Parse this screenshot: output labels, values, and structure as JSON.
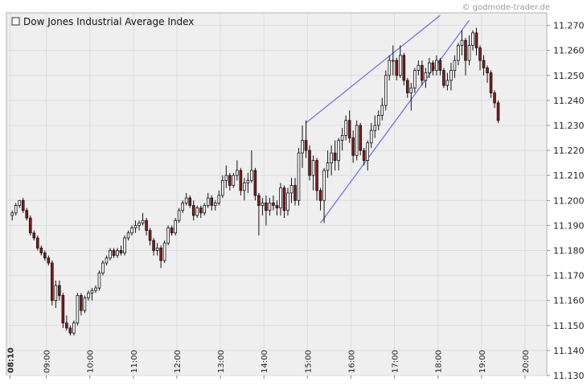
{
  "watermark": "© godmode-trader.de",
  "chart_data": {
    "type": "candlestick",
    "title": "Dow Jones Industrial Average Index",
    "ylim": [
      11130,
      11275
    ],
    "y_ticks": [
      "11.130",
      "11.140",
      "11.150",
      "11.160",
      "11.170",
      "11.180",
      "11.190",
      "11.200",
      "11.210",
      "11.220",
      "11.230",
      "11.240",
      "11.250",
      "11.260",
      "11.270"
    ],
    "y_tick_values": [
      11130,
      11140,
      11150,
      11160,
      11170,
      11180,
      11190,
      11200,
      11210,
      11220,
      11230,
      11240,
      11250,
      11260,
      11270
    ],
    "x_ticks": [
      "08:10",
      "09:00",
      "10:00",
      "11:00",
      "12:00",
      "13:00",
      "14:00",
      "15:00",
      "16:00",
      "17:00",
      "18:00",
      "19:00",
      "20:00"
    ],
    "x_tick_minutes": [
      490,
      540,
      600,
      660,
      720,
      780,
      840,
      900,
      960,
      1020,
      1080,
      1140,
      1200
    ],
    "x_range_minutes": [
      485,
      1230
    ],
    "bar_interval_minutes": 5,
    "colors": {
      "up": "#ffffff",
      "down": "#8b1a1a",
      "trendline": "#6a6aee",
      "grid": "#dcdcdc",
      "plot_bg": "#efefef"
    },
    "candles": [
      [
        11194,
        11196,
        11192,
        11195
      ],
      [
        11195,
        11199,
        11194,
        11198
      ],
      [
        11198,
        11200,
        11197,
        11200
      ],
      [
        11200,
        11201,
        11195,
        11196
      ],
      [
        11196,
        11197,
        11192,
        11193
      ],
      [
        11193,
        11194,
        11186,
        11187
      ],
      [
        11187,
        11188,
        11184,
        11185
      ],
      [
        11185,
        11186,
        11180,
        11181
      ],
      [
        11181,
        11182,
        11178,
        11179
      ],
      [
        11179,
        11180,
        11176,
        11177
      ],
      [
        11177,
        11178,
        11174,
        11175
      ],
      [
        11175,
        11176,
        11158,
        11160
      ],
      [
        11160,
        11168,
        11157,
        11166
      ],
      [
        11166,
        11168,
        11160,
        11162
      ],
      [
        11162,
        11163,
        11149,
        11151
      ],
      [
        11151,
        11154,
        11148,
        11149
      ],
      [
        11149,
        11150,
        11146,
        11147
      ],
      [
        11147,
        11152,
        11146,
        11151
      ],
      [
        11151,
        11163,
        11150,
        11162
      ],
      [
        11162,
        11163,
        11154,
        11156
      ],
      [
        11156,
        11162,
        11155,
        11161
      ],
      [
        11161,
        11164,
        11160,
        11163
      ],
      [
        11163,
        11165,
        11160,
        11164
      ],
      [
        11164,
        11166,
        11163,
        11165
      ],
      [
        11165,
        11172,
        11164,
        11171
      ],
      [
        11171,
        11176,
        11170,
        11175
      ],
      [
        11175,
        11178,
        11174,
        11177
      ],
      [
        11177,
        11181,
        11176,
        11180
      ],
      [
        11180,
        11181,
        11177,
        11178
      ],
      [
        11178,
        11181,
        11177,
        11180
      ],
      [
        11180,
        11182,
        11178,
        11179
      ],
      [
        11179,
        11186,
        11178,
        11185
      ],
      [
        11185,
        11188,
        11184,
        11187
      ],
      [
        11187,
        11190,
        11186,
        11189
      ],
      [
        11189,
        11192,
        11187,
        11190
      ],
      [
        11190,
        11192,
        11188,
        11191
      ],
      [
        11191,
        11195,
        11190,
        11192
      ],
      [
        11192,
        11193,
        11186,
        11188
      ],
      [
        11188,
        11189,
        11182,
        11184
      ],
      [
        11184,
        11185,
        11178,
        11180
      ],
      [
        11180,
        11183,
        11178,
        11181
      ],
      [
        11181,
        11182,
        11173,
        11176
      ],
      [
        11176,
        11184,
        11175,
        11183
      ],
      [
        11183,
        11190,
        11182,
        11189
      ],
      [
        11189,
        11190,
        11186,
        11187
      ],
      [
        11187,
        11193,
        11186,
        11192
      ],
      [
        11192,
        11197,
        11191,
        11196
      ],
      [
        11196,
        11200,
        11195,
        11199
      ],
      [
        11199,
        11203,
        11198,
        11201
      ],
      [
        11201,
        11202,
        11197,
        11198
      ],
      [
        11198,
        11200,
        11192,
        11194
      ],
      [
        11194,
        11198,
        11193,
        11197
      ],
      [
        11197,
        11198,
        11193,
        11195
      ],
      [
        11195,
        11199,
        11194,
        11198
      ],
      [
        11198,
        11203,
        11197,
        11201
      ],
      [
        11201,
        11202,
        11196,
        11198
      ],
      [
        11198,
        11200,
        11196,
        11199
      ],
      [
        11199,
        11204,
        11198,
        11202
      ],
      [
        11202,
        11210,
        11201,
        11208
      ],
      [
        11208,
        11214,
        11205,
        11210
      ],
      [
        11210,
        11211,
        11204,
        11206
      ],
      [
        11206,
        11211,
        11205,
        11210
      ],
      [
        11210,
        11216,
        11208,
        11212
      ],
      [
        11212,
        11213,
        11202,
        11204
      ],
      [
        11204,
        11209,
        11200,
        11207
      ],
      [
        11207,
        11211,
        11203,
        11208
      ],
      [
        11208,
        11220,
        11207,
        11212
      ],
      [
        11212,
        11213,
        11200,
        11202
      ],
      [
        11202,
        11203,
        11186,
        11198
      ],
      [
        11198,
        11201,
        11194,
        11199
      ],
      [
        11199,
        11202,
        11190,
        11196
      ],
      [
        11196,
        11201,
        11194,
        11199
      ],
      [
        11199,
        11202,
        11196,
        11198
      ],
      [
        11198,
        11200,
        11194,
        11197
      ],
      [
        11197,
        11207,
        11194,
        11205
      ],
      [
        11205,
        11206,
        11193,
        11196
      ],
      [
        11196,
        11205,
        11194,
        11203
      ],
      [
        11203,
        11209,
        11199,
        11206
      ],
      [
        11206,
        11209,
        11198,
        11200
      ],
      [
        11200,
        11221,
        11198,
        11219
      ],
      [
        11219,
        11230,
        11213,
        11224
      ],
      [
        11224,
        11232,
        11217,
        11220
      ],
      [
        11220,
        11222,
        11208,
        11210
      ],
      [
        11210,
        11218,
        11204,
        11216
      ],
      [
        11216,
        11217,
        11200,
        11204
      ],
      [
        11204,
        11205,
        11196,
        11200
      ],
      [
        11200,
        11213,
        11191,
        11212
      ],
      [
        11212,
        11220,
        11209,
        11215
      ],
      [
        11215,
        11222,
        11210,
        11219
      ],
      [
        11219,
        11224,
        11212,
        11216
      ],
      [
        11216,
        11225,
        11212,
        11224
      ],
      [
        11224,
        11229,
        11220,
        11226
      ],
      [
        11226,
        11234,
        11224,
        11232
      ],
      [
        11232,
        11236,
        11223,
        11225
      ],
      [
        11225,
        11228,
        11215,
        11218
      ],
      [
        11218,
        11232,
        11216,
        11230
      ],
      [
        11230,
        11231,
        11218,
        11220
      ],
      [
        11220,
        11221,
        11214,
        11216
      ],
      [
        11216,
        11224,
        11212,
        11223
      ],
      [
        11223,
        11231,
        11221,
        11228
      ],
      [
        11228,
        11234,
        11225,
        11230
      ],
      [
        11230,
        11236,
        11228,
        11234
      ],
      [
        11234,
        11241,
        11232,
        11238
      ],
      [
        11238,
        11252,
        11236,
        11250
      ],
      [
        11250,
        11258,
        11248,
        11256
      ],
      [
        11256,
        11262,
        11250,
        11256
      ],
      [
        11256,
        11257,
        11248,
        11250
      ],
      [
        11250,
        11262,
        11249,
        11258
      ],
      [
        11258,
        11259,
        11246,
        11248
      ],
      [
        11248,
        11249,
        11241,
        11243
      ],
      [
        11243,
        11247,
        11236,
        11245
      ],
      [
        11245,
        11253,
        11243,
        11252
      ],
      [
        11252,
        11256,
        11250,
        11254
      ],
      [
        11254,
        11256,
        11246,
        11248
      ],
      [
        11248,
        11253,
        11245,
        11251
      ],
      [
        11251,
        11257,
        11249,
        11255
      ],
      [
        11255,
        11256,
        11250,
        11252
      ],
      [
        11252,
        11258,
        11250,
        11256
      ],
      [
        11256,
        11257,
        11250,
        11252
      ],
      [
        11252,
        11253,
        11245,
        11246
      ],
      [
        11246,
        11251,
        11244,
        11248
      ],
      [
        11248,
        11255,
        11244,
        11252
      ],
      [
        11252,
        11258,
        11249,
        11256
      ],
      [
        11256,
        11263,
        11254,
        11262
      ],
      [
        11262,
        11268,
        11258,
        11264
      ],
      [
        11264,
        11265,
        11250,
        11256
      ],
      [
        11256,
        11266,
        11254,
        11262
      ],
      [
        11262,
        11268,
        11260,
        11267
      ],
      [
        11267,
        11269,
        11258,
        11261
      ],
      [
        11261,
        11262,
        11252,
        11256
      ],
      [
        11256,
        11258,
        11250,
        11253
      ],
      [
        11253,
        11254,
        11247,
        11251
      ],
      [
        11251,
        11252,
        11241,
        11243
      ],
      [
        11243,
        11244,
        11237,
        11239
      ],
      [
        11239,
        11240,
        11231,
        11232
      ]
    ]
  }
}
